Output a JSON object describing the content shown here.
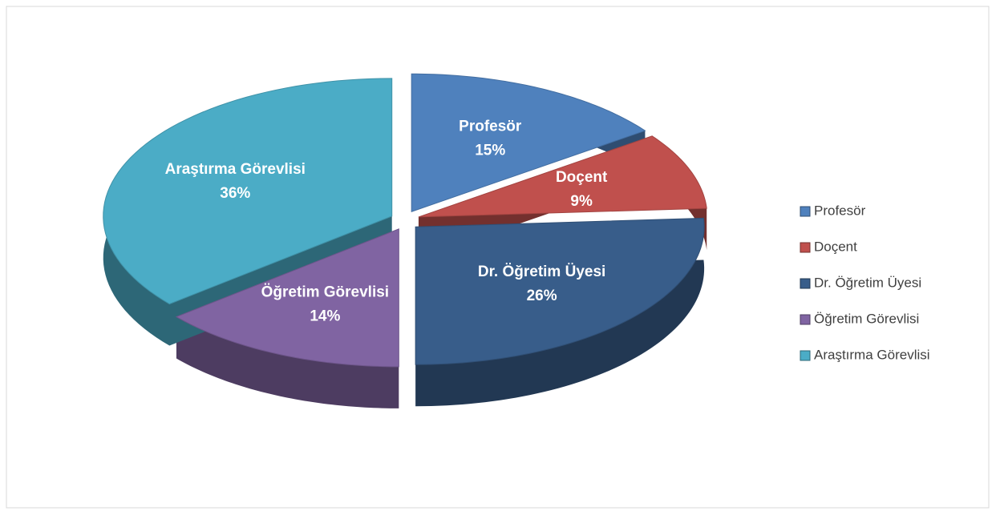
{
  "chart_data": {
    "type": "pie",
    "three_d": true,
    "exploded": true,
    "categories": [
      "Profesör",
      "Doçent",
      "Dr. Öğretim Üyesi",
      "Öğretim Görevlisi",
      "Araştırma Görevlisi"
    ],
    "values": [
      15,
      9,
      26,
      14,
      36
    ],
    "value_labels": [
      "15%",
      "9%",
      "26%",
      "14%",
      "36%"
    ],
    "colors": [
      "#4f81bd",
      "#c0504d",
      "#385d8a",
      "#8064a2",
      "#4bacc6"
    ],
    "legend": "right"
  }
}
